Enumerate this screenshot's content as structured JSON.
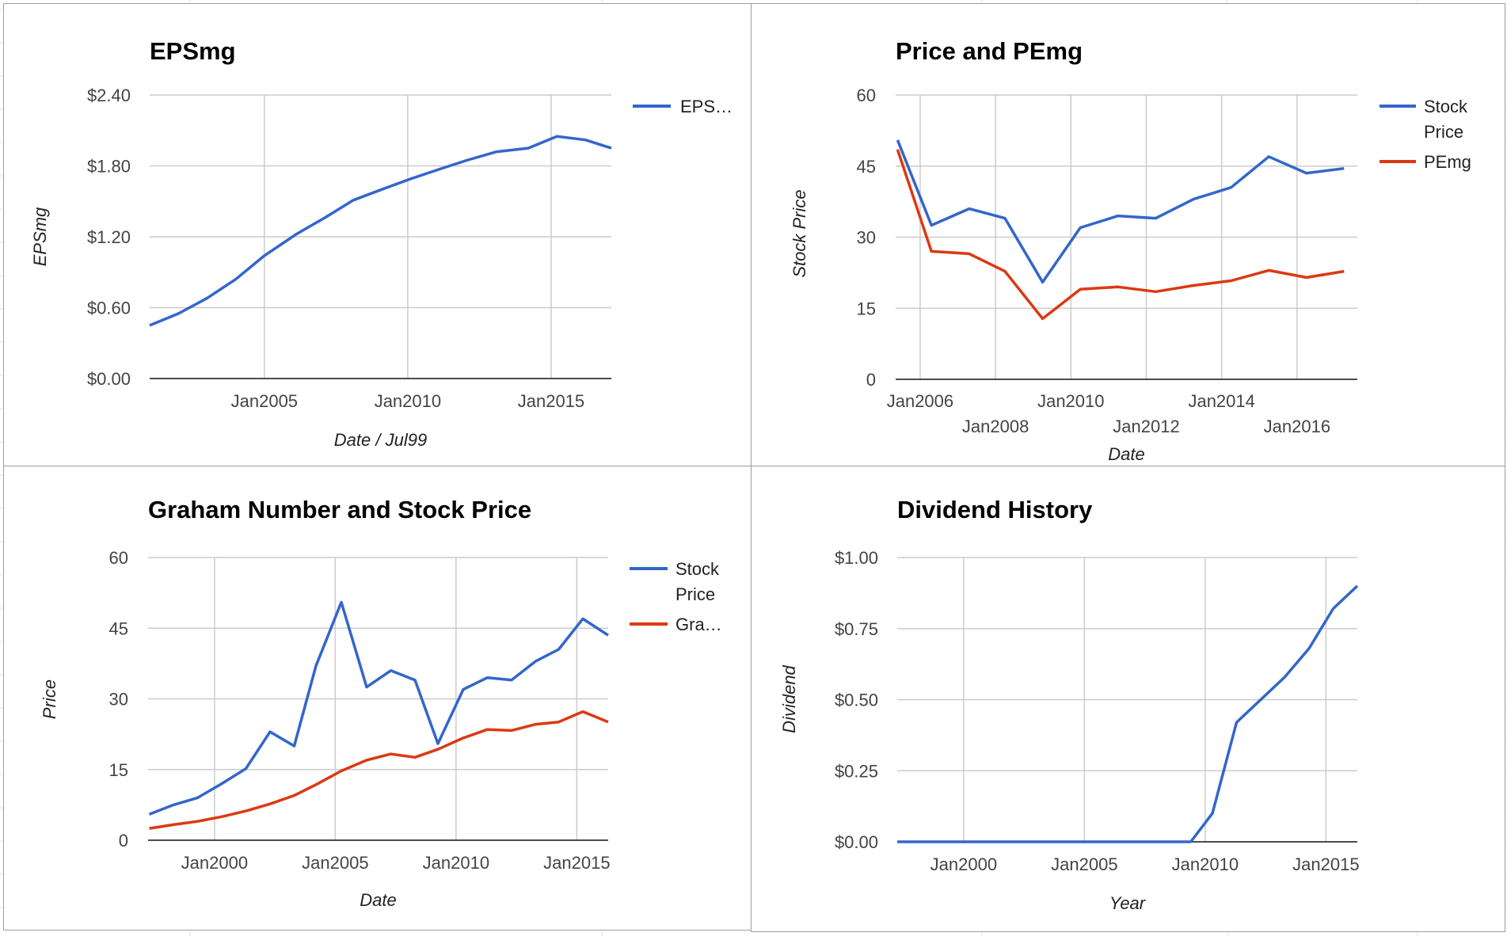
{
  "colors": {
    "blue": "#3366cc",
    "red": "#dc3912",
    "grid": "#cccccc",
    "axis": "#333333"
  },
  "chart_data": [
    {
      "type": "line",
      "title": "EPSmg",
      "xlabel": "Date / Jul99",
      "ylabel": "EPSmg",
      "xlim": [
        2001.0,
        2017.1
      ],
      "ylim": [
        0,
        2.4
      ],
      "y_ticks": [
        "$0.00",
        "$0.60",
        "$1.20",
        "$1.80",
        "$2.40"
      ],
      "x_ticks": [
        "Jan2005",
        "Jan2010",
        "Jan2015"
      ],
      "legend_position": "right",
      "grid": true,
      "series": [
        {
          "name": "EPS…",
          "color": "#3366cc",
          "x": [
            2001.0,
            2002.0,
            2003.0,
            2004.0,
            2005.0,
            2006.1,
            2007.1,
            2008.1,
            2009.2,
            2010.1,
            2011.2,
            2012.1,
            2013.1,
            2014.2,
            2015.2,
            2016.2,
            2017.1
          ],
          "y": [
            0.45,
            0.55,
            0.68,
            0.84,
            1.04,
            1.22,
            1.36,
            1.51,
            1.61,
            1.69,
            1.78,
            1.85,
            1.92,
            1.95,
            2.05,
            2.02,
            1.95
          ]
        }
      ]
    },
    {
      "type": "line",
      "title": "Price and PEmg",
      "xlabel": "Date",
      "ylabel": "Stock Price",
      "xlim": [
        2005.35,
        2017.6
      ],
      "ylim": [
        0,
        60
      ],
      "y_ticks": [
        "0",
        "15",
        "30",
        "45",
        "60"
      ],
      "x_ticks": [
        "Jan2006",
        "Jan2008",
        "Jan2010",
        "Jan2012",
        "Jan2014",
        "Jan2016"
      ],
      "legend_position": "right",
      "grid": true,
      "series": [
        {
          "name": "Stock Price",
          "color": "#3366cc",
          "x": [
            2005.4,
            2006.3,
            2007.3,
            2008.25,
            2009.25,
            2010.25,
            2011.25,
            2012.25,
            2013.25,
            2014.25,
            2015.25,
            2016.25,
            2017.25
          ],
          "y": [
            50.5,
            32.5,
            36.0,
            34.0,
            20.5,
            32.0,
            34.5,
            34.0,
            38.0,
            40.5,
            47.0,
            43.5,
            44.5
          ]
        },
        {
          "name": "PEmg",
          "color": "#dc3912",
          "x": [
            2005.4,
            2006.3,
            2007.3,
            2008.25,
            2009.25,
            2010.25,
            2011.25,
            2012.25,
            2013.25,
            2014.25,
            2015.25,
            2016.25,
            2017.25
          ],
          "y": [
            48.5,
            27.0,
            26.5,
            22.8,
            12.8,
            19.0,
            19.5,
            18.5,
            19.8,
            20.8,
            23.0,
            21.5,
            22.8
          ]
        }
      ]
    },
    {
      "type": "line",
      "title": "Graham Number and Stock Price",
      "xlabel": "Date",
      "ylabel": "Price",
      "xlim": [
        1997.25,
        2016.3
      ],
      "ylim": [
        0,
        60
      ],
      "y_ticks": [
        "0",
        "15",
        "30",
        "45",
        "60"
      ],
      "x_ticks": [
        "Jan2000",
        "Jan2005",
        "Jan2010",
        "Jan2015"
      ],
      "legend_position": "right",
      "grid": true,
      "series": [
        {
          "name": "Stock Price",
          "color": "#3366cc",
          "x": [
            1997.3,
            1998.3,
            1999.3,
            2000.3,
            2001.3,
            2002.3,
            2003.3,
            2004.2,
            2005.25,
            2006.3,
            2007.3,
            2008.3,
            2009.25,
            2010.3,
            2011.3,
            2012.3,
            2013.3,
            2014.25,
            2015.25,
            2016.3
          ],
          "y": [
            5.5,
            7.5,
            9.0,
            12.0,
            15.2,
            23.0,
            20.0,
            37.0,
            50.5,
            32.5,
            36.0,
            34.0,
            20.5,
            32.0,
            34.5,
            34.0,
            38.0,
            40.5,
            47.0,
            43.5
          ]
        },
        {
          "name": "Gra…",
          "color": "#dc3912",
          "x": [
            1997.3,
            1998.3,
            1999.3,
            2000.3,
            2001.3,
            2002.3,
            2003.3,
            2004.2,
            2005.25,
            2006.3,
            2007.3,
            2008.3,
            2009.25,
            2010.3,
            2011.3,
            2012.3,
            2013.3,
            2014.25,
            2015.25,
            2016.3
          ],
          "y": [
            2.5,
            3.3,
            4.0,
            5.0,
            6.2,
            7.7,
            9.5,
            11.8,
            14.7,
            17.0,
            18.3,
            17.6,
            19.3,
            21.7,
            23.5,
            23.3,
            24.6,
            25.1,
            27.3,
            25.1
          ]
        }
      ]
    },
    {
      "type": "line",
      "title": "Dividend History",
      "xlabel": "Year",
      "ylabel": "Dividend",
      "xlim": [
        1997.25,
        2016.3
      ],
      "ylim": [
        0,
        1.0
      ],
      "y_ticks": [
        "$0.00",
        "$0.25",
        "$0.50",
        "$0.75",
        "$1.00"
      ],
      "x_ticks": [
        "Jan2000",
        "Jan2005",
        "Jan2010",
        "Jan2015"
      ],
      "legend_position": "none",
      "grid": true,
      "series": [
        {
          "name": "",
          "color": "#3366cc",
          "x": [
            1997.25,
            2009.4,
            2010.3,
            2011.3,
            2012.3,
            2013.3,
            2014.3,
            2015.3,
            2016.3
          ],
          "y": [
            0.0,
            0.0,
            0.1,
            0.42,
            0.5,
            0.58,
            0.68,
            0.82,
            0.9
          ]
        }
      ]
    }
  ]
}
